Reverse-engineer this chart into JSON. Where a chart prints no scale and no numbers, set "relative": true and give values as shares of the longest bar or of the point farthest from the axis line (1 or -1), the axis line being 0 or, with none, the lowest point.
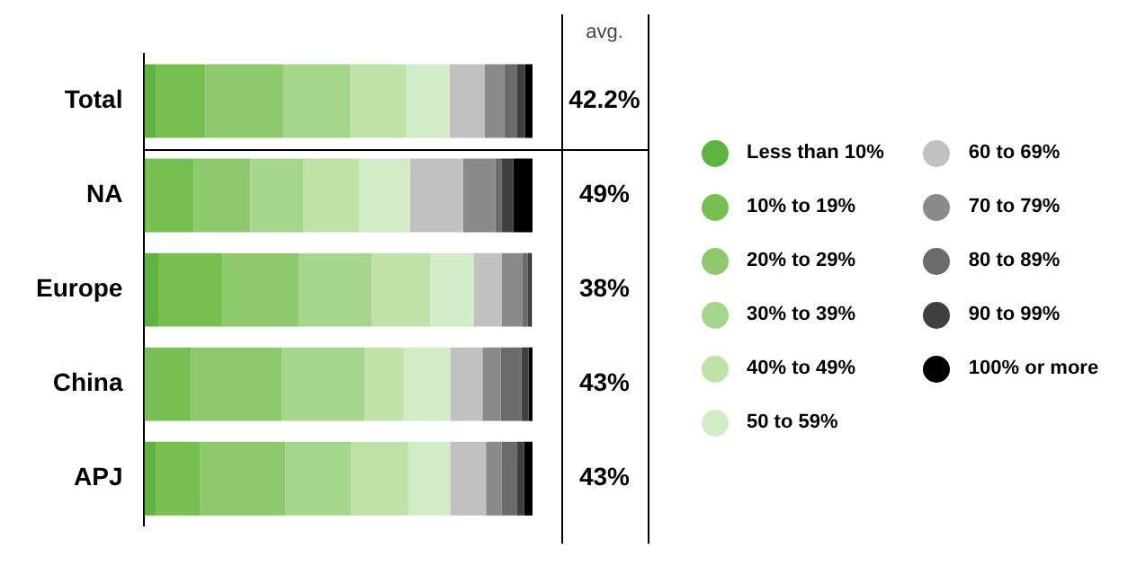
{
  "chart_data": {
    "type": "bar",
    "orientation": "horizontal",
    "stacked": true,
    "relative": true,
    "legend": "right",
    "categories": [
      "Total",
      "NA",
      "Europe",
      "China",
      "APJ"
    ],
    "series": [
      {
        "name": "Less than 10%",
        "color": "#5fb441",
        "values": [
          0.029,
          0.007,
          0.036,
          0.003,
          0.029
        ]
      },
      {
        "name": "10% to 19%",
        "color": "#76bf52",
        "values": [
          0.128,
          0.12,
          0.165,
          0.118,
          0.115
        ]
      },
      {
        "name": "20% to 29%",
        "color": "#8fc96e",
        "values": [
          0.201,
          0.146,
          0.197,
          0.234,
          0.22
        ]
      },
      {
        "name": "30% to 39%",
        "color": "#a6d68b",
        "values": [
          0.173,
          0.137,
          0.187,
          0.212,
          0.168
        ]
      },
      {
        "name": "40% to 49%",
        "color": "#bfe2a9",
        "values": [
          0.144,
          0.144,
          0.151,
          0.101,
          0.148
        ]
      },
      {
        "name": "50 to 59%",
        "color": "#d3ecc8",
        "values": [
          0.111,
          0.13,
          0.112,
          0.121,
          0.108
        ]
      },
      {
        "name": "60 to 69%",
        "color": "#c1c1c1",
        "values": [
          0.091,
          0.137,
          0.072,
          0.082,
          0.092
        ]
      },
      {
        "name": "70 to 79%",
        "color": "#8a8a8a",
        "values": [
          0.05,
          0.083,
          0.053,
          0.047,
          0.04
        ]
      },
      {
        "name": "80 to 89%",
        "color": "#6b6b6b",
        "values": [
          0.032,
          0.017,
          0.014,
          0.053,
          0.039
        ]
      },
      {
        "name": "90 to 99%",
        "color": "#404040",
        "values": [
          0.022,
          0.029,
          0.007,
          0.019,
          0.019
        ]
      },
      {
        "name": "100% or more",
        "color": "#000000",
        "values": [
          0.019,
          0.05,
          0.004,
          0.01,
          0.022
        ]
      }
    ],
    "annotations": [
      "avg.",
      "42.2%",
      "49%",
      "38%",
      "43%",
      "43%"
    ]
  }
}
